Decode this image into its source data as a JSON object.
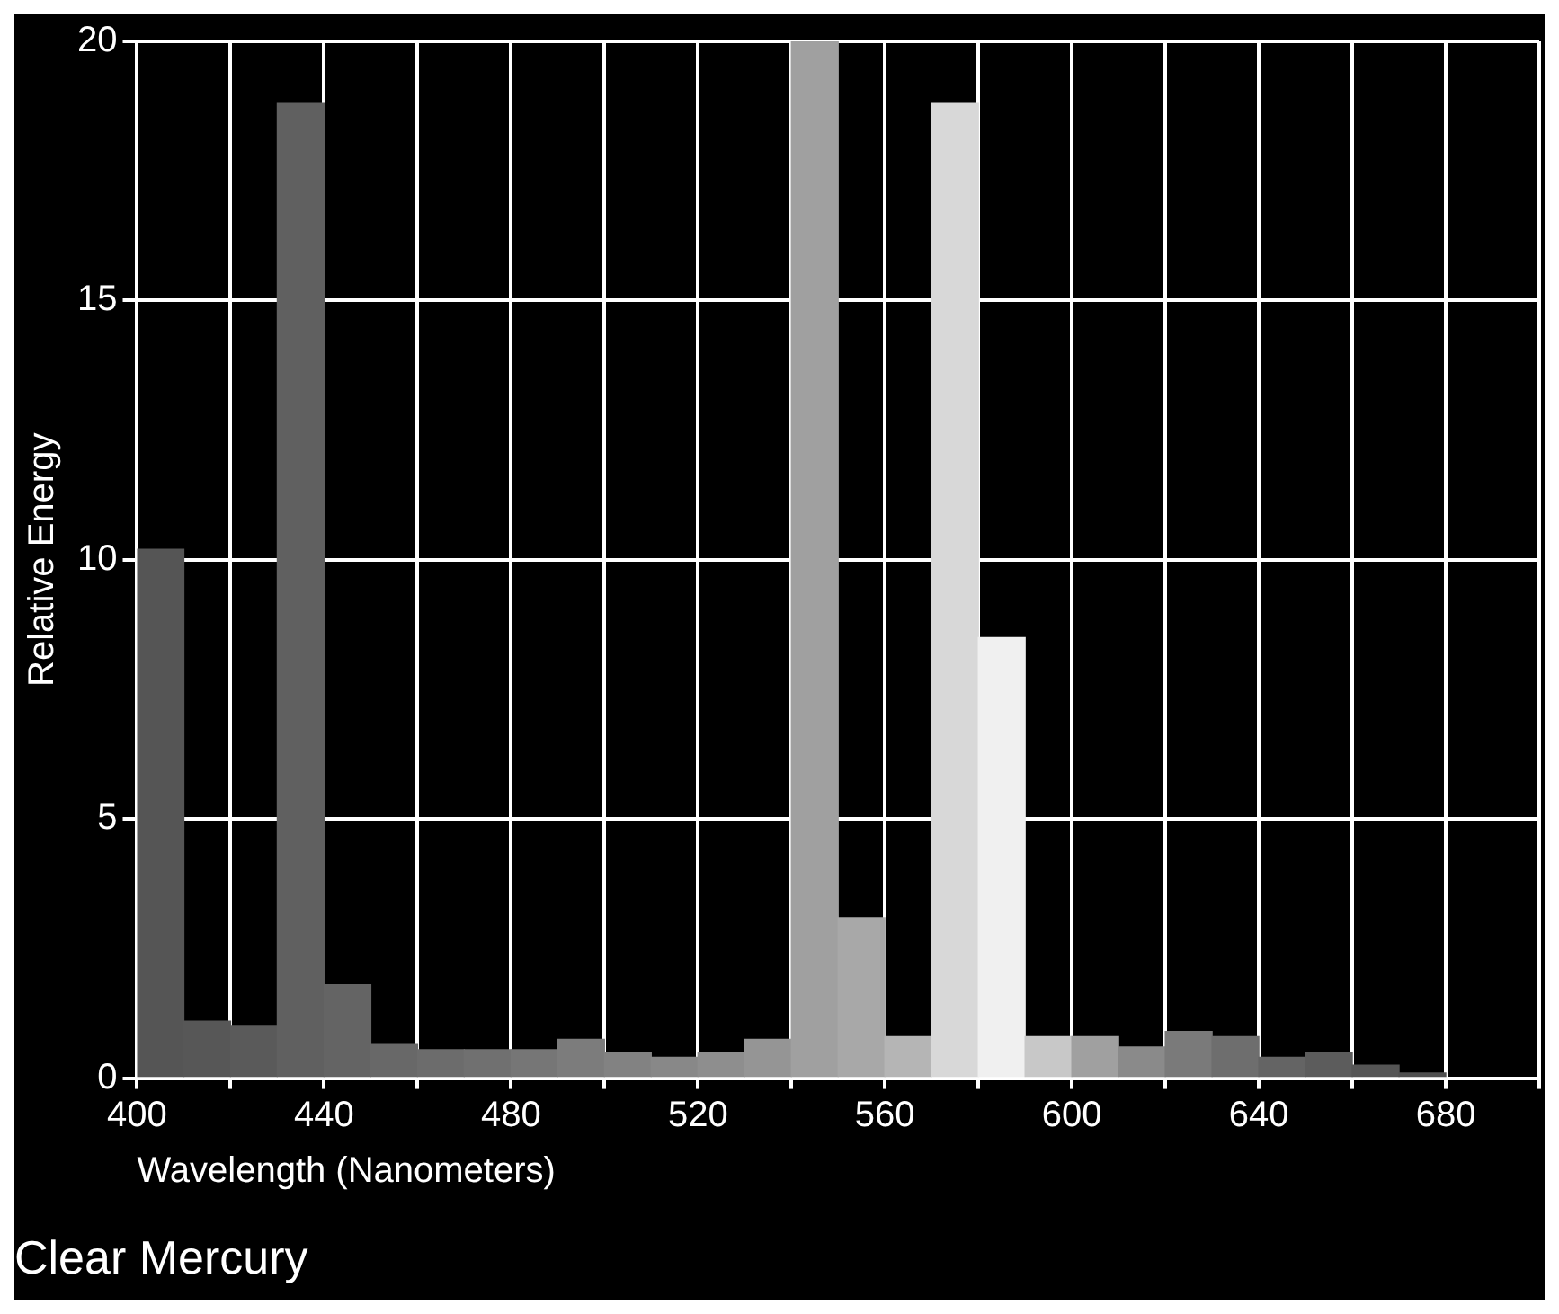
{
  "chart_data": {
    "type": "histogram",
    "title": "Clear Mercury",
    "xlabel": "Wavelength (Nanometers)",
    "ylabel": "Relative Energy",
    "bins": [
      400,
      410,
      420,
      430,
      440,
      450,
      460,
      470,
      480,
      490,
      500,
      510,
      520,
      530,
      540,
      550,
      560,
      570,
      580,
      590,
      600,
      610,
      620,
      630,
      640,
      650,
      660,
      670,
      680
    ],
    "values": [
      10.2,
      1.1,
      1.0,
      18.8,
      1.8,
      0.65,
      0.55,
      0.55,
      0.55,
      0.75,
      0.5,
      0.4,
      0.5,
      0.75,
      20,
      3.1,
      0.8,
      18.8,
      8.5,
      0.8,
      0.8,
      0.6,
      0.9,
      0.8,
      0.4,
      0.5,
      0.25,
      0.1
    ],
    "colors": [
      "#555555",
      "#575757",
      "#5a5a5a",
      "#606060",
      "#646464",
      "#686868",
      "#6c6c6c",
      "#707070",
      "#767676",
      "#7c7c7c",
      "#828282",
      "#888888",
      "#8e8e8e",
      "#959595",
      "#a0a0a0",
      "#a8a8a8",
      "#b5b5b5",
      "#d8d8d8",
      "#f0f0f0",
      "#c8c8c8",
      "#a0a0a0",
      "#8a8a8a",
      "#7a7a7a",
      "#6e6e6e",
      "#646464",
      "#5c5c5c",
      "#555555",
      "#505050"
    ],
    "xlim": [
      400,
      700
    ],
    "xticks": [
      400,
      {
        "value": 420,
        "label": null
      },
      440,
      {
        "value": 460,
        "label": null
      },
      480,
      {
        "value": 500,
        "label": null
      },
      520,
      {
        "value": 540,
        "label": null
      },
      560,
      {
        "value": 580,
        "label": null
      },
      600,
      {
        "value": 620,
        "label": null
      },
      640,
      {
        "value": 660,
        "label": null
      },
      680,
      {
        "value": 700,
        "label": null
      }
    ],
    "ylim": [
      0,
      20
    ],
    "yticks": [
      0,
      5,
      10,
      15,
      20
    ],
    "grid": true
  }
}
